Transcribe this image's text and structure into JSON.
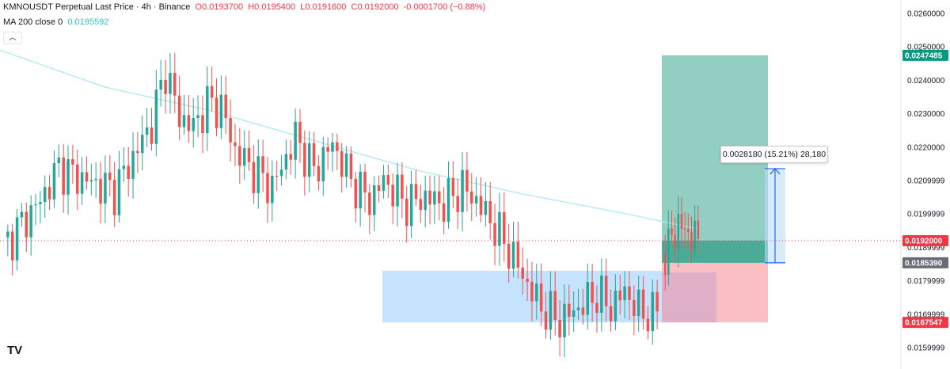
{
  "legend": {
    "symbol": "KMNOUSDT Perpetual Last Price · 4h · Binance",
    "open": "O0.0193700",
    "high": "H0.0195400",
    "low": "L0.0191600",
    "close": "C0.0192000",
    "change": "-0.0001700 (−0.88%)",
    "ma_label": "MA 200 close 0",
    "ma_value": "0.0195592"
  },
  "position_tool": {
    "measure_label": "0.0028180 (15.21%) 28,180"
  },
  "logo_text": "TV",
  "collapse_icon": "︿",
  "colors": {
    "up": "#26a69a",
    "down": "#ef5350",
    "ma": "#b2ebf2",
    "target_zone": "#7fc6b7",
    "stop_zone": "#f8b8bd",
    "range_box": "#bbdefb",
    "measure": "#2962ff",
    "last_price_tag": "#f23645",
    "entry_tag": "#6a6d78",
    "target_tag": "#089981"
  },
  "chart_data": {
    "type": "candlestick",
    "title": "KMNOUSDT Perpetual Last Price · 4h · Binance",
    "yaxis": {
      "ticks": [
        "0.0260000",
        "0.0250000",
        "0.0240000",
        "0.0230000",
        "0.0220000",
        "0.0209999",
        "0.0199999",
        "0.0189999",
        "0.0179999",
        "0.0169999",
        "0.0159999"
      ],
      "range": [
        0.0155,
        0.0265
      ]
    },
    "price_tags": {
      "target": "0.0247485",
      "last": "0.0192000",
      "entry": "0.0185390",
      "stop": "0.0167547"
    },
    "candle_count": 142,
    "anchor_closes": [
      {
        "i": 0,
        "c": 0.019
      },
      {
        "i": 4,
        "c": 0.0197
      },
      {
        "i": 8,
        "c": 0.0204
      },
      {
        "i": 12,
        "c": 0.0214
      },
      {
        "i": 16,
        "c": 0.0211
      },
      {
        "i": 20,
        "c": 0.0209
      },
      {
        "i": 24,
        "c": 0.0207
      },
      {
        "i": 28,
        "c": 0.0217
      },
      {
        "i": 32,
        "c": 0.0227
      },
      {
        "i": 35,
        "c": 0.0243
      },
      {
        "i": 38,
        "c": 0.0229
      },
      {
        "i": 41,
        "c": 0.0226
      },
      {
        "i": 44,
        "c": 0.0233
      },
      {
        "i": 47,
        "c": 0.0232
      },
      {
        "i": 50,
        "c": 0.0219
      },
      {
        "i": 54,
        "c": 0.0213
      },
      {
        "i": 58,
        "c": 0.0208
      },
      {
        "i": 63,
        "c": 0.0223
      },
      {
        "i": 67,
        "c": 0.0213
      },
      {
        "i": 71,
        "c": 0.0221
      },
      {
        "i": 75,
        "c": 0.021
      },
      {
        "i": 79,
        "c": 0.0204
      },
      {
        "i": 82,
        "c": 0.021
      },
      {
        "i": 87,
        "c": 0.0203
      },
      {
        "i": 91,
        "c": 0.0205
      },
      {
        "i": 95,
        "c": 0.0203
      },
      {
        "i": 99,
        "c": 0.0208
      },
      {
        "i": 102,
        "c": 0.0204
      },
      {
        "i": 106,
        "c": 0.0196
      },
      {
        "i": 110,
        "c": 0.0187
      },
      {
        "i": 113,
        "c": 0.0179
      },
      {
        "i": 116,
        "c": 0.0172
      },
      {
        "i": 120,
        "c": 0.0168
      },
      {
        "i": 124,
        "c": 0.0172
      },
      {
        "i": 128,
        "c": 0.0176
      },
      {
        "i": 131,
        "c": 0.0172
      },
      {
        "i": 134,
        "c": 0.0177
      },
      {
        "i": 137,
        "c": 0.0171
      },
      {
        "i": 140,
        "c": 0.017
      },
      {
        "i": 141,
        "c": 0.0172
      }
    ],
    "second_segment_closes": [
      {
        "i": 0,
        "c": 0.0172
      },
      {
        "i": 6,
        "c": 0.0178
      },
      {
        "i": 12,
        "c": 0.0169
      },
      {
        "i": 18,
        "c": 0.0168
      },
      {
        "i": 24,
        "c": 0.0177
      },
      {
        "i": 30,
        "c": 0.0171
      },
      {
        "i": 36,
        "c": 0.0169
      },
      {
        "i": 42,
        "c": 0.017
      },
      {
        "i": 48,
        "c": 0.0178
      },
      {
        "i": 54,
        "c": 0.0174
      },
      {
        "i": 58,
        "c": 0.0182
      },
      {
        "i": 62,
        "c": 0.0185
      },
      {
        "i": 66,
        "c": 0.019
      },
      {
        "i": 69,
        "c": 0.0197
      },
      {
        "i": 72,
        "c": 0.0194
      },
      {
        "i": 75,
        "c": 0.0192
      }
    ],
    "ma200_points": [
      {
        "x_frac": 0.0,
        "v": 0.0249
      },
      {
        "x_frac": 0.15,
        "v": 0.0238
      },
      {
        "x_frac": 0.3,
        "v": 0.0231
      },
      {
        "x_frac": 0.45,
        "v": 0.0222
      },
      {
        "x_frac": 0.6,
        "v": 0.0213
      },
      {
        "x_frac": 0.75,
        "v": 0.0206
      },
      {
        "x_frac": 0.9,
        "v": 0.02
      },
      {
        "x_frac": 1.0,
        "v": 0.0195592
      }
    ],
    "range_box": {
      "top": 0.0183,
      "bottom": 0.0167547
    },
    "long_position": {
      "entry": 0.018539,
      "target": 0.0247485,
      "stop": 0.0167547
    },
    "measure": {
      "from": 0.018539,
      "to": 0.021357
    },
    "grid": false
  }
}
